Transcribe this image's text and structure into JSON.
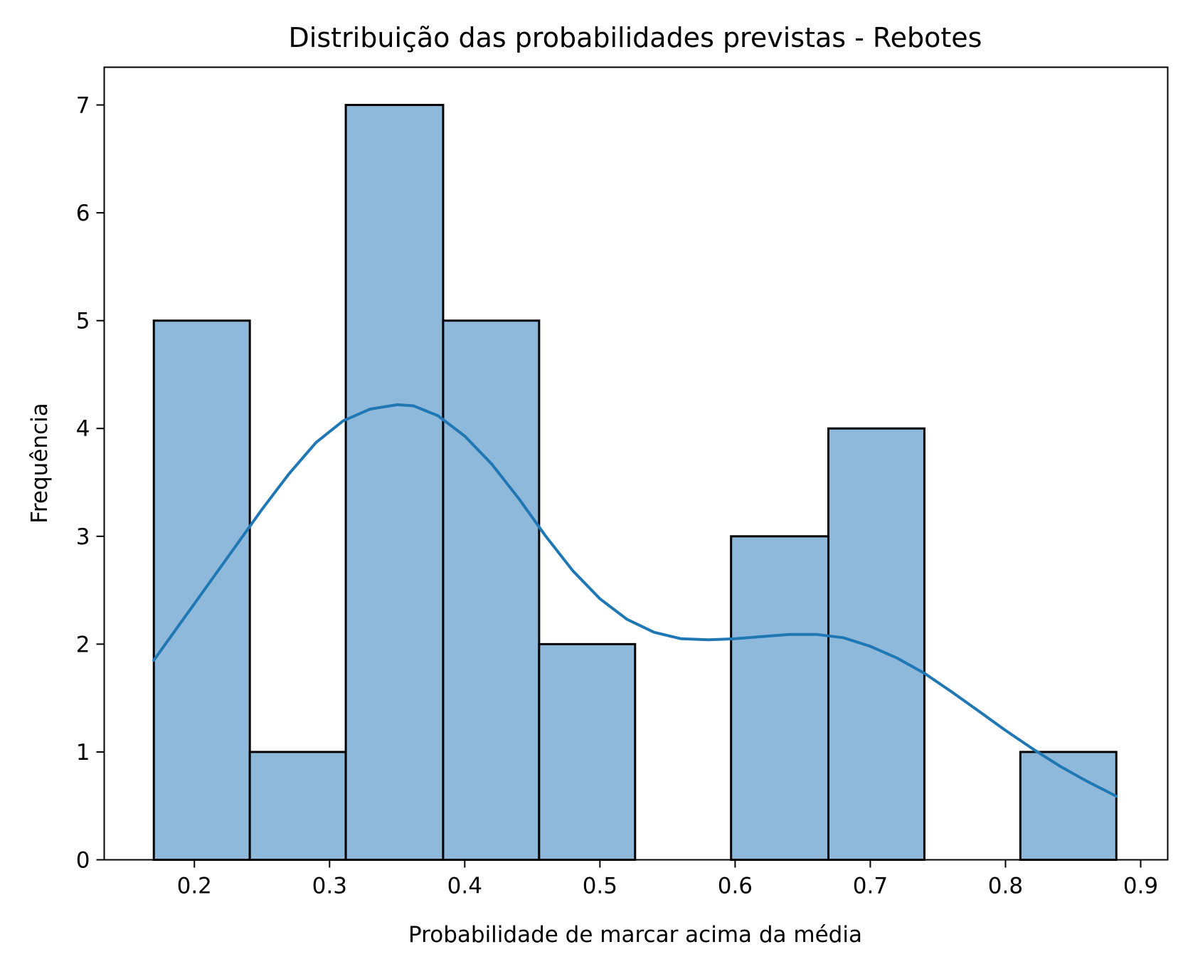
{
  "chart_data": {
    "type": "bar",
    "title": "Distribuição das probabilidades previstas - Rebotes",
    "xlabel": "Probabilidade de marcar acima da média",
    "ylabel": "Frequência",
    "xlim": [
      0.1333,
      0.92
    ],
    "ylim": [
      0,
      7.35
    ],
    "x_ticks": [
      0.2,
      0.3,
      0.4,
      0.5,
      0.6,
      0.7,
      0.8,
      0.9
    ],
    "x_tick_labels": [
      "0.2",
      "0.3",
      "0.4",
      "0.5",
      "0.6",
      "0.7",
      "0.8",
      "0.9"
    ],
    "y_ticks": [
      0,
      1,
      2,
      3,
      4,
      5,
      6,
      7
    ],
    "y_tick_labels": [
      "0",
      "1",
      "2",
      "3",
      "4",
      "5",
      "6",
      "7"
    ],
    "bins": [
      {
        "x0": 0.17,
        "x1": 0.241,
        "count": 5
      },
      {
        "x0": 0.241,
        "x1": 0.312,
        "count": 1
      },
      {
        "x0": 0.312,
        "x1": 0.384,
        "count": 7
      },
      {
        "x0": 0.384,
        "x1": 0.455,
        "count": 5
      },
      {
        "x0": 0.455,
        "x1": 0.526,
        "count": 2
      },
      {
        "x0": 0.526,
        "x1": 0.597,
        "count": 0
      },
      {
        "x0": 0.597,
        "x1": 0.669,
        "count": 3
      },
      {
        "x0": 0.669,
        "x1": 0.74,
        "count": 4
      },
      {
        "x0": 0.74,
        "x1": 0.811,
        "count": 0
      },
      {
        "x0": 0.811,
        "x1": 0.882,
        "count": 1
      }
    ],
    "kde": {
      "x": [
        0.17,
        0.19,
        0.21,
        0.23,
        0.25,
        0.27,
        0.29,
        0.31,
        0.33,
        0.35,
        0.362,
        0.38,
        0.4,
        0.42,
        0.44,
        0.46,
        0.48,
        0.5,
        0.52,
        0.54,
        0.56,
        0.58,
        0.6,
        0.62,
        0.64,
        0.66,
        0.68,
        0.7,
        0.72,
        0.74,
        0.76,
        0.78,
        0.8,
        0.82,
        0.84,
        0.86,
        0.882
      ],
      "y": [
        1.85,
        2.2,
        2.55,
        2.9,
        3.25,
        3.58,
        3.87,
        4.07,
        4.18,
        4.22,
        4.21,
        4.12,
        3.93,
        3.67,
        3.35,
        3.0,
        2.68,
        2.42,
        2.23,
        2.11,
        2.05,
        2.04,
        2.05,
        2.07,
        2.09,
        2.09,
        2.06,
        1.98,
        1.87,
        1.73,
        1.56,
        1.38,
        1.2,
        1.03,
        0.87,
        0.73,
        0.59
      ]
    },
    "colors": {
      "bar_fill": "#8fb9da",
      "bar_edge": "#000000",
      "kde_line": "#1f77b4"
    },
    "grid": false
  }
}
